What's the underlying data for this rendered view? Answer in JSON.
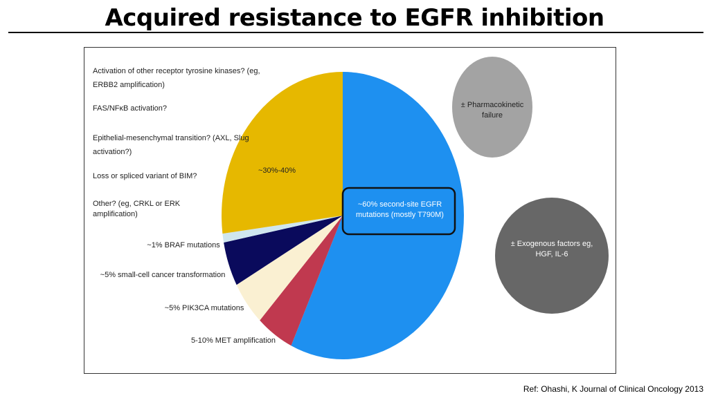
{
  "title": "Acquired resistance to EGFR inhibition",
  "reference": "Ref: Ohashi, K Journal of Clinical Oncology 2013",
  "chart_data": {
    "type": "pie",
    "categories": [
      "~60% second-site EGFR mutations (mostly T790M)",
      "5-10% MET amplification",
      "~5% PIK3CA mutations",
      "~5% small-cell cancer transformation",
      "~1% BRAF mutations",
      "~30%-40%"
    ],
    "values": [
      57,
      5,
      5,
      5,
      1,
      27
    ],
    "colors": [
      "#1e90f0",
      "#c0394f",
      "#faf0d2",
      "#0a0a5c",
      "#cfe6ef",
      "#e6b800"
    ],
    "annotations": [
      "Activation of other receptor tyrosine kinases? (eg, ERBB2 amplification)",
      "FAS/NFκB activation?",
      "Epithelial-mesenchymal transition? (AXL, Slug activation?)",
      "Loss or spliced variant of BIM?",
      "Other? (eg, CRKL or ERK amplification)"
    ],
    "side_factors": [
      "± Pharmacokinetic failure",
      "± Exogenous factors eg, HGF, IL-6"
    ]
  }
}
